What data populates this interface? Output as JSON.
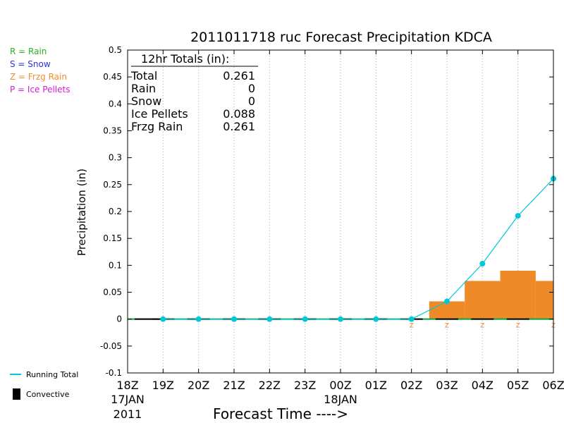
{
  "chart_data": {
    "type": "bar",
    "title": "2011011718 ruc Forecast Precipitation KDCA",
    "ylabel": "Precipitation (in)",
    "xlabel": "Forecast Time ---->",
    "ylim": [
      -0.1,
      0.5
    ],
    "yticks": [
      -0.1,
      -0.05,
      0,
      0.05,
      0.1,
      0.15,
      0.2,
      0.25,
      0.3,
      0.35,
      0.4,
      0.45,
      0.5
    ],
    "categories": [
      "18Z",
      "19Z",
      "20Z",
      "21Z",
      "22Z",
      "23Z",
      "00Z",
      "01Z",
      "02Z",
      "03Z",
      "04Z",
      "05Z",
      "06Z"
    ],
    "date_labels": [
      {
        "category": "18Z",
        "lines": [
          "17JAN",
          "2011"
        ]
      },
      {
        "category": "00Z",
        "lines": [
          "18JAN"
        ]
      }
    ],
    "grid": "vertical-dotted",
    "series": [
      {
        "name": "Frzg Rain",
        "kind": "bar",
        "color": "#ef8a28",
        "bars": [
          {
            "x_start": 8.5,
            "x_end": 9.5,
            "value": 0.033
          },
          {
            "x_start": 9.5,
            "x_end": 10.5,
            "value": 0.071
          },
          {
            "x_start": 10.5,
            "x_end": 11.5,
            "value": 0.09
          },
          {
            "x_start": 11.5,
            "x_end": 12,
            "value": 0.071
          }
        ],
        "markers": {
          "label": "Z",
          "x": [
            8,
            9,
            10,
            11,
            12
          ]
        }
      },
      {
        "name": "Running Total",
        "kind": "line",
        "color": "#00c8d8",
        "x": [
          1,
          2,
          3,
          4,
          5,
          6,
          7,
          8,
          9,
          10,
          11,
          12
        ],
        "values": [
          0,
          0,
          0,
          0,
          0,
          0,
          0,
          0,
          0.033,
          0.103,
          0.192,
          0.261
        ]
      }
    ],
    "zero_line": {
      "color": "#00a83c",
      "convective_color": "#000000"
    },
    "totals_box": {
      "header": "12hr Totals (in):",
      "rows": [
        {
          "label": "Total",
          "value": "0.261"
        },
        {
          "label": "Rain",
          "value": "0"
        },
        {
          "label": "Snow",
          "value": "0"
        },
        {
          "label": "Ice Pellets",
          "value": "0.088"
        },
        {
          "label": "Frzg Rain",
          "value": "0.261"
        }
      ]
    },
    "type_legend": [
      {
        "text": "R = Rain",
        "color": "#2ab02a"
      },
      {
        "text": "S = Snow",
        "color": "#2b33e0"
      },
      {
        "text": "Z = Frzg Rain",
        "color": "#f0902a"
      },
      {
        "text": "P = Ice Pellets",
        "color": "#d21cd2"
      }
    ],
    "bottom_legend": [
      {
        "text": "Running Total",
        "icon": "line",
        "color": "#00c8d8"
      },
      {
        "text": "Convective",
        "icon": "bar",
        "color": "#000000"
      }
    ]
  }
}
